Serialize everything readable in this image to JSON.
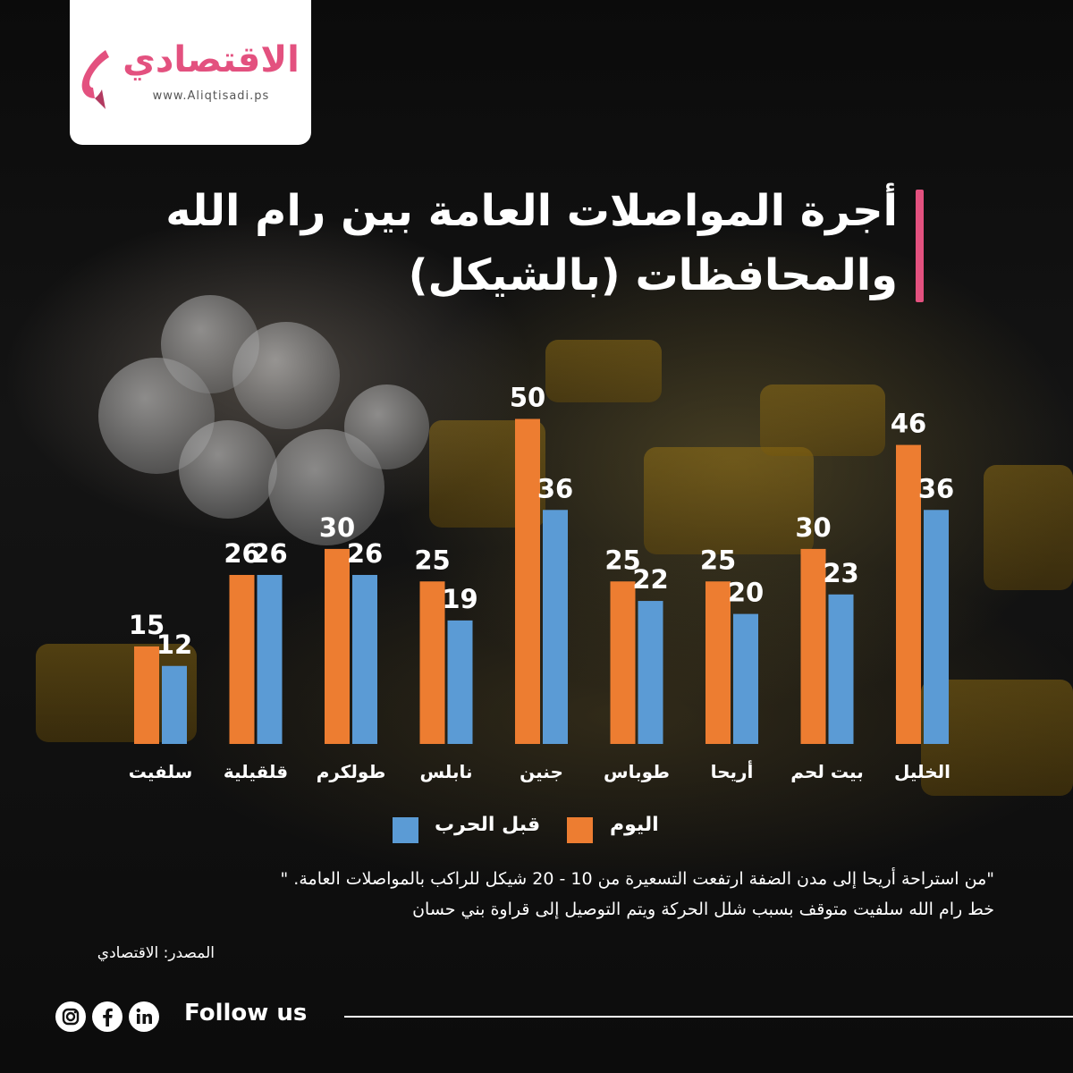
{
  "brand": {
    "name": "الاقتصادي",
    "url": "www.Aliqtisadi.ps",
    "accent_color": "#e3517f"
  },
  "title": "أجرة المواصلات العامة بين رام الله والمحافظات (بالشيكل)",
  "chart_data": {
    "type": "bar",
    "categories": [
      "سلفيت",
      "قلقيلية",
      "طولكرم",
      "نابلس",
      "جنين",
      "طوباس",
      "أريحا",
      "بيت لحم",
      "الخليل"
    ],
    "series": [
      {
        "name": "اليوم",
        "color": "#ed7d31",
        "values": [
          15,
          26,
          30,
          25,
          50,
          25,
          25,
          30,
          46
        ]
      },
      {
        "name": "قبل الحرب",
        "color": "#5b9bd5",
        "values": [
          12,
          26,
          26,
          19,
          36,
          22,
          20,
          23,
          36
        ]
      }
    ],
    "ylim": [
      0,
      50
    ],
    "grid": false,
    "legend_position": "bottom"
  },
  "notes": [
    "\"من استراحة أريحا إلى مدن الضفة ارتفعت التسعيرة من 10 - 20 شيكل للراكب بالمواصلات العامة. \"",
    "خط رام الله سلفيت متوقف بسبب شلل الحركة ويتم التوصيل إلى قراوة بني حسان"
  ],
  "source": "المصدر: الاقتصادي",
  "footer": {
    "follow_label": "Follow us",
    "social_icons": [
      "instagram-icon",
      "facebook-icon",
      "linkedin-icon"
    ]
  }
}
